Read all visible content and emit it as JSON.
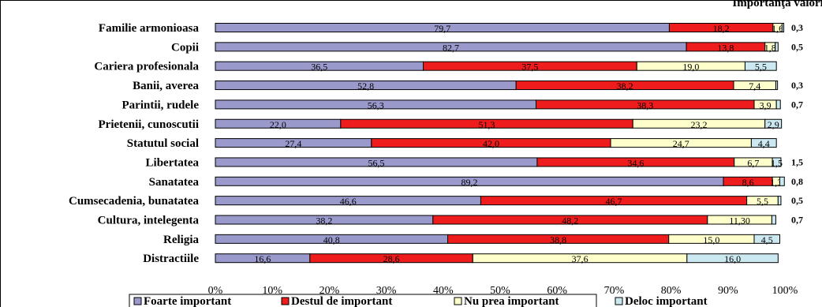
{
  "chart_data": {
    "type": "bar",
    "orientation": "horizontal-stacked-100",
    "title": "Importanţa valorii",
    "categories": [
      "Familie armonioasa",
      "Copii",
      "Cariera profesionala",
      "Banii, averea",
      "Parintii, rudele",
      "Prietenii, cunoscutii",
      "Statutul social",
      "Libertatea",
      "Sanatatea",
      "Cumsecadenia, bunatatea",
      "Cultura, intelegenta",
      "Religia",
      "Distractiile"
    ],
    "series": [
      {
        "name": "Foarte important",
        "color": "#9999cc",
        "values": [
          79.7,
          82.7,
          36.5,
          52.8,
          56.3,
          22.0,
          27.4,
          56.5,
          89.2,
          46.6,
          38.2,
          40.8,
          16.6
        ],
        "labels": [
          "79,7",
          "82,7",
          "36,5",
          "52,8",
          "56,3",
          "22,0",
          "27,4",
          "56,5",
          "89,2",
          "46,6",
          "38,2",
          "40,8",
          "16,6"
        ]
      },
      {
        "name": "Destul de important",
        "color": "#ee1c1c",
        "values": [
          18.2,
          13.8,
          37.5,
          38.2,
          38.3,
          51.3,
          42.0,
          34.6,
          8.6,
          46.7,
          48.2,
          38.8,
          28.6
        ],
        "labels": [
          "18,2",
          "13,8",
          "37,5",
          "38,2",
          "38,3",
          "51,3",
          "42,0",
          "34,6",
          "8,6",
          "46,7",
          "48,2",
          "38,8",
          "28,6"
        ]
      },
      {
        "name": "Nu prea important",
        "color": "#ffffcc",
        "values": [
          1.6,
          1.8,
          19.0,
          7.4,
          3.9,
          23.2,
          24.7,
          6.7,
          1.3,
          5.5,
          11.3,
          15.0,
          37.6
        ],
        "labels": [
          "1,6",
          "1,8",
          "19,0",
          "7,4",
          "3,9",
          "23,2",
          "24,7",
          "6,7",
          "1,3",
          "5,5",
          "11,30",
          "15,0",
          "37,6"
        ]
      },
      {
        "name": "Deloc important",
        "color": "#cce8f0",
        "values": [
          0.3,
          0.5,
          5.5,
          0.3,
          0.7,
          2.9,
          4.4,
          1.5,
          0.8,
          0.5,
          0.7,
          4.5,
          16.0
        ],
        "labels": [
          "0,3",
          "0,5",
          "5,5",
          "0,3",
          "0,7",
          "2,9",
          "4,4",
          "1,5",
          "0,8",
          "0,5",
          "0,7",
          "4,5",
          "16,0"
        ]
      }
    ],
    "outside_labels": [
      "0,3",
      "0,5",
      "",
      "0,3",
      "0,7",
      "",
      "",
      "1,5",
      "0,8",
      "0,5",
      "0,7",
      "",
      ""
    ],
    "xlim": [
      0,
      100
    ],
    "xticks": [
      "0%",
      "10%",
      "20%",
      "30%",
      "40%",
      "50%",
      "60%",
      "70%",
      "80%",
      "90%",
      "100%"
    ],
    "grid": false,
    "legend_position": "bottom"
  }
}
